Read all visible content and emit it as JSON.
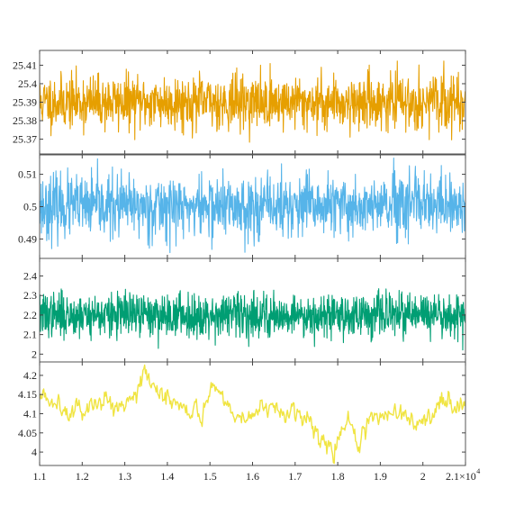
{
  "chart_data": [
    {
      "type": "line",
      "xlim": [
        11000,
        21000
      ],
      "ylim": [
        25.362,
        25.418
      ],
      "yticks": [
        25.37,
        25.38,
        25.39,
        25.4,
        25.41
      ],
      "ytick_labels": [
        "25.37",
        "25.38",
        "25.39",
        "25.4",
        "25.41"
      ],
      "series": [
        {
          "color": "#E69F00",
          "center": 25.39,
          "noise_std": 0.0072,
          "range": [
            25.362,
            25.415
          ],
          "pattern": "noise",
          "n_points": 1200,
          "seed": 11
        }
      ]
    },
    {
      "type": "line",
      "xlim": [
        11000,
        21000
      ],
      "ylim": [
        0.484,
        0.516
      ],
      "yticks": [
        0.49,
        0.5,
        0.51
      ],
      "ytick_labels": [
        "0.49",
        "0.5",
        "0.51"
      ],
      "series": [
        {
          "color": "#56B4E9",
          "center": 0.5,
          "noise_std": 0.0048,
          "range": [
            0.485,
            0.515
          ],
          "pattern": "noise",
          "n_points": 1200,
          "seed": 23
        }
      ]
    },
    {
      "type": "line",
      "xlim": [
        11000,
        21000
      ],
      "ylim": [
        1.96,
        2.49
      ],
      "yticks": [
        2.0,
        2.1,
        2.2,
        2.3,
        2.4
      ],
      "ytick_labels": [
        "2",
        "2.1",
        "2.2",
        "2.3",
        "2.4"
      ],
      "series": [
        {
          "color": "#009E73",
          "center": 2.2,
          "noise_std": 0.055,
          "range": [
            1.97,
            2.46
          ],
          "pattern": "noise",
          "n_points": 1400,
          "seed": 37
        }
      ]
    },
    {
      "type": "line",
      "xlim": [
        11000,
        21000
      ],
      "ylim": [
        3.965,
        4.235
      ],
      "yticks": [
        4.0,
        4.05,
        4.1,
        4.15,
        4.2
      ],
      "ytick_labels": [
        "4",
        "4.05",
        "4.1",
        "4.15",
        "4.2"
      ],
      "series": [
        {
          "color": "#F0E442",
          "pattern": "walk",
          "noise_std": 0.012,
          "n_points": 520,
          "seed": 5,
          "trend": [
            [
              11000,
              4.14
            ],
            [
              11500,
              4.13
            ],
            [
              12000,
              4.11
            ],
            [
              12300,
              4.12
            ],
            [
              12600,
              4.14
            ],
            [
              12900,
              4.12
            ],
            [
              13200,
              4.16
            ],
            [
              13450,
              4.21
            ],
            [
              13700,
              4.15
            ],
            [
              14100,
              4.14
            ],
            [
              14500,
              4.12
            ],
            [
              14800,
              4.1
            ],
            [
              15050,
              4.18
            ],
            [
              15300,
              4.14
            ],
            [
              15600,
              4.1
            ],
            [
              15800,
              4.09
            ],
            [
              16300,
              4.11
            ],
            [
              16700,
              4.1
            ],
            [
              17000,
              4.11
            ],
            [
              17300,
              4.09
            ],
            [
              17500,
              4.06
            ],
            [
              17700,
              4.03
            ],
            [
              17900,
              4.0
            ],
            [
              18100,
              4.05
            ],
            [
              18300,
              4.08
            ],
            [
              18500,
              4.01
            ],
            [
              18700,
              4.07
            ],
            [
              19000,
              4.09
            ],
            [
              19300,
              4.11
            ],
            [
              19600,
              4.09
            ],
            [
              19900,
              4.08
            ],
            [
              20200,
              4.09
            ],
            [
              20500,
              4.14
            ],
            [
              20800,
              4.13
            ],
            [
              21000,
              4.11
            ]
          ]
        }
      ]
    }
  ],
  "xaxis": {
    "ticks": [
      11000,
      12000,
      13000,
      14000,
      15000,
      16000,
      17000,
      18000,
      19000,
      20000,
      21000
    ],
    "tick_labels": [
      "1.1",
      "1.2",
      "1.3",
      "1.4",
      "1.5",
      "1.6",
      "1.7",
      "1.8",
      "1.9",
      "2",
      "2.1×10"
    ],
    "multiplier_exponent": "4"
  },
  "frame_color": "#555555",
  "tick_color": "#444444"
}
